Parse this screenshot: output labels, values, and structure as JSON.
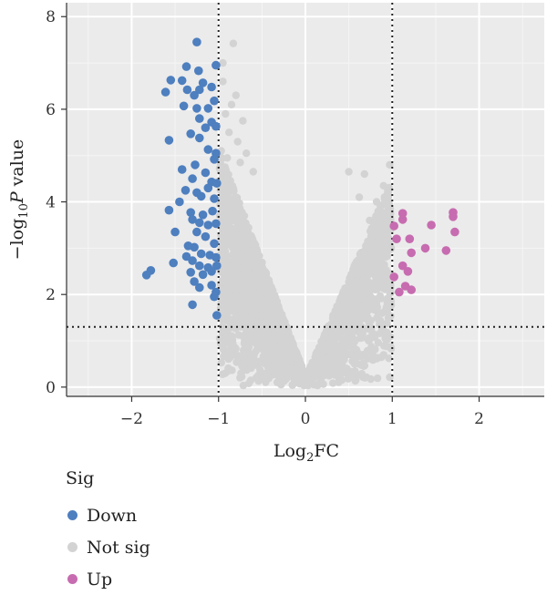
{
  "chart_data": {
    "type": "scatter",
    "title": "",
    "xlabel": "Log2FC",
    "ylabel": "-log10 P value",
    "xlim": [
      -2.75,
      2.75
    ],
    "ylim": [
      -0.2,
      8.3
    ],
    "x_ticks": [
      -2,
      -1,
      0,
      1,
      2
    ],
    "x_tick_labels": [
      "−2",
      "−1",
      "0",
      "1",
      "2"
    ],
    "y_ticks": [
      0,
      2,
      4,
      6,
      8
    ],
    "y_tick_labels": [
      "0",
      "2",
      "4",
      "6",
      "8"
    ],
    "grid": true,
    "thresholds": {
      "log2fc": [
        -1,
        1
      ],
      "neg_log10_p": 1.3
    },
    "legend_position": "bottom-left",
    "legend_title": "Sig",
    "colors": {
      "Down": "#4e7fbf",
      "Not sig": "#d3d3d3",
      "Up": "#c76cb0"
    },
    "series": [
      {
        "name": "Down",
        "color": "#4e7fbf",
        "points": [
          [
            -1.25,
            7.45
          ],
          [
            -1.37,
            6.92
          ],
          [
            -1.23,
            6.83
          ],
          [
            -1.03,
            6.95
          ],
          [
            -1.55,
            6.63
          ],
          [
            -1.42,
            6.62
          ],
          [
            -1.18,
            6.57
          ],
          [
            -1.61,
            6.37
          ],
          [
            -1.36,
            6.42
          ],
          [
            -1.22,
            6.42
          ],
          [
            -1.08,
            6.48
          ],
          [
            -1.28,
            6.3
          ],
          [
            -1.05,
            6.18
          ],
          [
            -1.4,
            6.07
          ],
          [
            -1.25,
            6.02
          ],
          [
            -1.12,
            6.02
          ],
          [
            -1.22,
            5.8
          ],
          [
            -1.08,
            5.72
          ],
          [
            -1.03,
            5.63
          ],
          [
            -1.32,
            5.47
          ],
          [
            -1.22,
            5.38
          ],
          [
            -1.57,
            5.33
          ],
          [
            -1.12,
            5.13
          ],
          [
            -1.03,
            5.05
          ],
          [
            -1.27,
            4.8
          ],
          [
            -1.05,
            4.92
          ],
          [
            -1.15,
            4.63
          ],
          [
            -1.3,
            4.5
          ],
          [
            -1.08,
            4.43
          ],
          [
            -1.38,
            4.25
          ],
          [
            -1.25,
            4.2
          ],
          [
            -1.12,
            4.3
          ],
          [
            -1.02,
            4.4
          ],
          [
            -1.2,
            4.12
          ],
          [
            -1.05,
            4.07
          ],
          [
            -1.57,
            3.82
          ],
          [
            -1.32,
            3.77
          ],
          [
            -1.18,
            3.72
          ],
          [
            -1.07,
            3.8
          ],
          [
            -1.3,
            3.62
          ],
          [
            -1.22,
            3.55
          ],
          [
            -1.12,
            3.5
          ],
          [
            -1.03,
            3.53
          ],
          [
            -1.5,
            3.35
          ],
          [
            -1.25,
            3.35
          ],
          [
            -1.15,
            3.25
          ],
          [
            -1.05,
            3.1
          ],
          [
            -1.28,
            3.02
          ],
          [
            -1.37,
            2.82
          ],
          [
            -1.2,
            2.88
          ],
          [
            -1.1,
            2.85
          ],
          [
            -1.03,
            2.8
          ],
          [
            -1.3,
            2.73
          ],
          [
            -1.52,
            2.68
          ],
          [
            -1.22,
            2.62
          ],
          [
            -1.12,
            2.58
          ],
          [
            -1.02,
            2.62
          ],
          [
            -1.78,
            2.52
          ],
          [
            -1.83,
            2.42
          ],
          [
            -1.32,
            2.48
          ],
          [
            -1.18,
            2.43
          ],
          [
            -1.08,
            2.5
          ],
          [
            -1.28,
            2.28
          ],
          [
            -1.08,
            2.2
          ],
          [
            -1.22,
            2.15
          ],
          [
            -1.03,
            2.05
          ],
          [
            -1.3,
            1.78
          ],
          [
            -1.05,
            1.95
          ],
          [
            -1.02,
            1.55
          ],
          [
            -1.42,
            4.7
          ],
          [
            -1.15,
            5.6
          ],
          [
            -1.35,
            3.05
          ],
          [
            -1.45,
            4.0
          ]
        ]
      },
      {
        "name": "Up",
        "color": "#c76cb0",
        "points": [
          [
            1.02,
            3.48
          ],
          [
            1.12,
            3.62
          ],
          [
            1.12,
            3.75
          ],
          [
            1.05,
            3.2
          ],
          [
            1.45,
            3.5
          ],
          [
            1.7,
            3.77
          ],
          [
            1.7,
            3.68
          ],
          [
            1.72,
            3.35
          ],
          [
            1.2,
            3.2
          ],
          [
            1.38,
            3.0
          ],
          [
            1.62,
            2.95
          ],
          [
            1.22,
            2.9
          ],
          [
            1.12,
            2.62
          ],
          [
            1.18,
            2.5
          ],
          [
            1.02,
            2.38
          ],
          [
            1.15,
            2.18
          ],
          [
            1.22,
            2.1
          ],
          [
            1.08,
            2.05
          ]
        ]
      },
      {
        "name": "Not sig",
        "color": "#d3d3d3",
        "distribution": "dense V-shaped cloud between Log2FC −1 and 1, from 0 up to ~7.4; a few grey points above the threshold on the right arm up to ~4.8"
      }
    ]
  }
}
